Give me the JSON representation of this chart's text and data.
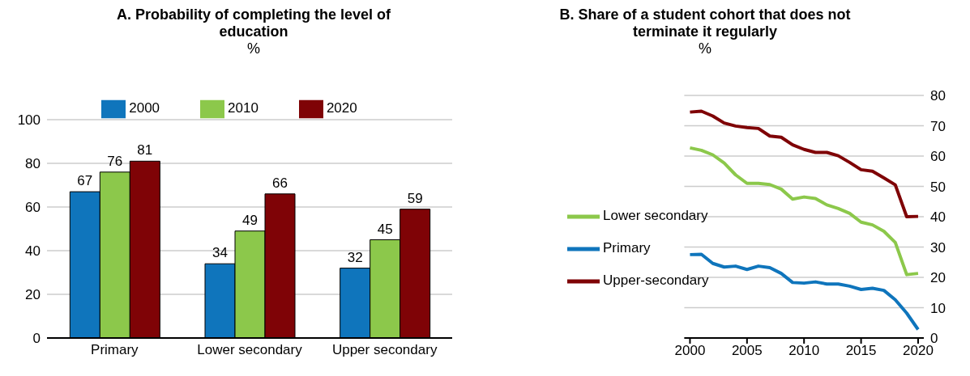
{
  "chart_data": [
    {
      "type": "bar",
      "title": "A. Probability of completing the level of education",
      "subtitle": "%",
      "categories": [
        "Primary",
        "Lower secondary",
        "Upper secondary"
      ],
      "series": [
        {
          "name": "2000",
          "color": "#0f75bc",
          "values": [
            67,
            34,
            32
          ]
        },
        {
          "name": "2010",
          "color": "#8cc84b",
          "values": [
            76,
            49,
            45
          ]
        },
        {
          "name": "2020",
          "color": "#7f0306",
          "values": [
            81,
            66,
            59
          ]
        }
      ],
      "ylim": [
        0,
        100
      ],
      "yticks": [
        0,
        20,
        40,
        60,
        80,
        100
      ],
      "grid": "y",
      "legend": "top",
      "data_labels": true
    },
    {
      "type": "line",
      "title": "B. Share of a student cohort that does not terminate it regularly",
      "subtitle": "%",
      "x": [
        2000,
        2001,
        2002,
        2003,
        2004,
        2005,
        2006,
        2007,
        2008,
        2009,
        2010,
        2011,
        2012,
        2013,
        2014,
        2015,
        2016,
        2017,
        2018,
        2019,
        2020
      ],
      "series": [
        {
          "name": "Upper-secondary",
          "color": "#7f0306",
          "values": [
            74.5,
            74.8,
            73.2,
            70.9,
            69.9,
            69.4,
            69.1,
            66.6,
            66.2,
            63.7,
            62.2,
            61.2,
            61.2,
            60.1,
            57.9,
            55.5,
            55.0,
            52.8,
            50.5,
            40.0,
            40.1
          ]
        },
        {
          "name": "Lower secondary",
          "color": "#8cc84b",
          "values": [
            62.7,
            61.9,
            60.4,
            57.7,
            53.8,
            51.0,
            51.0,
            50.6,
            49.1,
            45.8,
            46.5,
            46.0,
            43.9,
            42.7,
            41.1,
            38.2,
            37.3,
            35.2,
            31.5,
            20.9,
            21.3
          ]
        },
        {
          "name": "Primary",
          "color": "#0f75bc",
          "values": [
            27.5,
            27.6,
            24.6,
            23.4,
            23.7,
            22.6,
            23.7,
            23.2,
            21.3,
            18.3,
            18.1,
            18.5,
            17.8,
            17.8,
            17.1,
            16.0,
            16.4,
            15.7,
            12.6,
            8.2,
            2.8
          ]
        }
      ],
      "xlim": [
        1999.5,
        2020.5
      ],
      "xticks": [
        2000,
        2005,
        2010,
        2015,
        2020
      ],
      "ylim": [
        0,
        80
      ],
      "yticks": [
        0,
        10,
        20,
        30,
        40,
        50,
        60,
        70,
        80
      ],
      "grid": "y",
      "legend": "left",
      "marker": "none",
      "line_style": "solid"
    }
  ]
}
